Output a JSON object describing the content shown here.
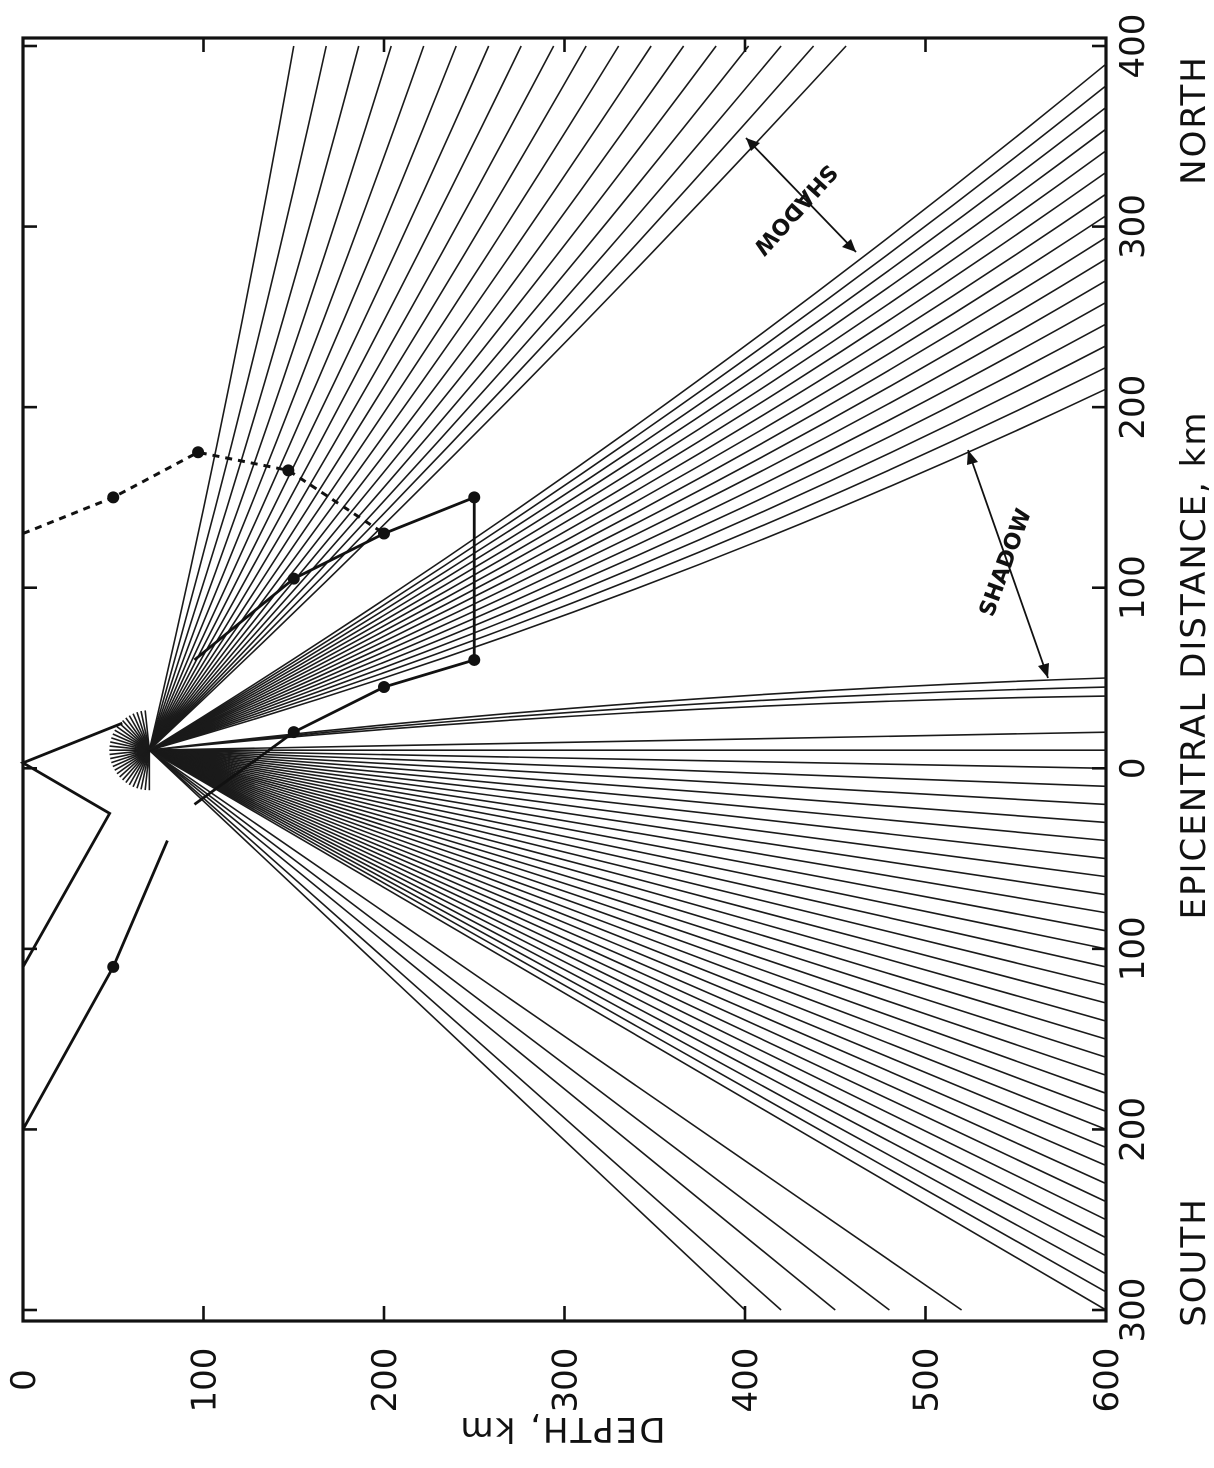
{
  "figure": {
    "depth_axis_label": "DEPTH, km",
    "distance_axis_label": "EPICENTRAL DISTANCE, km",
    "south_label": "SOUTH",
    "north_label": "NORTH",
    "shadow_labels": [
      "SHADOW",
      "SHADOW"
    ]
  },
  "depth_ticks": [
    "0",
    "100",
    "200",
    "300",
    "400",
    "500",
    "600"
  ],
  "depth_tick_values": [
    0,
    100,
    200,
    300,
    400,
    500,
    600
  ],
  "distance_ticks": [
    "300",
    "200",
    "100",
    "0",
    "100",
    "200",
    "300",
    "400"
  ],
  "distance_tick_values": [
    -300,
    -200,
    -100,
    0,
    100,
    200,
    300,
    400
  ],
  "axes": {
    "depth_range": [
      0,
      600
    ],
    "distance_range": [
      -300,
      400
    ],
    "orientation": "rotated 90°, depth increases toward the left"
  }
}
